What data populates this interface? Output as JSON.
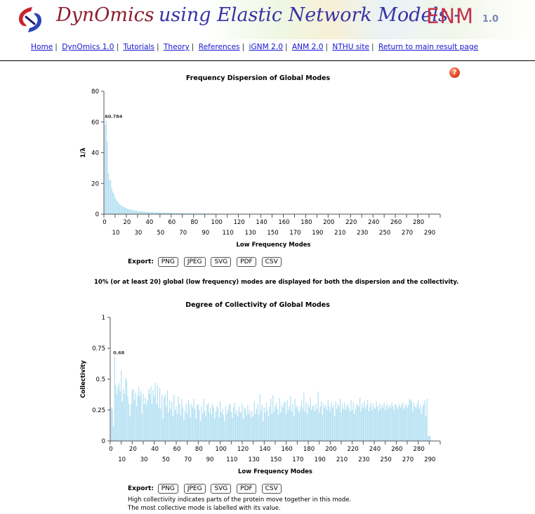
{
  "header": {
    "brand": "DynOmics",
    "subtitle": "using Elastic Network Models  -",
    "enm": "ENM",
    "version": "1.0"
  },
  "nav": [
    {
      "label": "Home"
    },
    {
      "label": "DynOmics 1.0"
    },
    {
      "label": "Tutorials"
    },
    {
      "label": "Theory"
    },
    {
      "label": "References"
    },
    {
      "label": "iGNM 2.0"
    },
    {
      "label": "ANM 2.0"
    },
    {
      "label": "NTHU site"
    },
    {
      "label": "Return to main result page"
    }
  ],
  "help": {
    "symbol": "?"
  },
  "export": {
    "label": "Export:",
    "buttons": [
      "PNG",
      "JPEG",
      "SVG",
      "PDF",
      "CSV"
    ]
  },
  "note_modes": "10% (or at least 20) global (low frequency) modes are displayed for both the dispersion and the collectivity.",
  "note_collectivity_1": "High collectivity indicates parts of the protein move together in this mode.",
  "note_collectivity_2": "The most collective mode is labelled with its value.",
  "colors": {
    "bar": "#b3e0f2",
    "axis": "#555555",
    "brand": "#8c1d2f",
    "subtitle": "#3a32a6",
    "link": "#1515d0"
  },
  "chart_data": [
    {
      "type": "bar",
      "title": "Frequency Dispersion of Global Modes",
      "xlabel": "Low Frequency Modes",
      "ylabel": "1/λ",
      "ylim": [
        0,
        80
      ],
      "yticks": [
        0,
        20,
        40,
        60,
        80
      ],
      "xlim": [
        0,
        300
      ],
      "xticks": [
        0,
        10,
        20,
        30,
        40,
        50,
        60,
        70,
        80,
        90,
        100,
        110,
        120,
        130,
        140,
        150,
        160,
        170,
        180,
        190,
        200,
        210,
        220,
        230,
        240,
        250,
        260,
        270,
        280,
        290
      ],
      "annotation": "60.784",
      "max_index": 1,
      "x": [
        1,
        2,
        3,
        4,
        5,
        6,
        7,
        8,
        9,
        10,
        11,
        12,
        13,
        14,
        15,
        16,
        17,
        18,
        19,
        20,
        21,
        22,
        23,
        24,
        25,
        26,
        27,
        28,
        29,
        30,
        31,
        32,
        33,
        34,
        35,
        36,
        37,
        38,
        39,
        40,
        41,
        42,
        43,
        44,
        45,
        46,
        47,
        48,
        49,
        50,
        51,
        52,
        53,
        54,
        55,
        56,
        57,
        58,
        59,
        60,
        61,
        62,
        63,
        64,
        65,
        66,
        67,
        68,
        69,
        70,
        71,
        72,
        73,
        74,
        75,
        76,
        77,
        78,
        79,
        80,
        81,
        82,
        83,
        84,
        85,
        86,
        87,
        88,
        89,
        90,
        91,
        92,
        93,
        94,
        95,
        96,
        97,
        98,
        99,
        100
      ],
      "values": [
        58.1,
        60.8,
        47.3,
        26.8,
        22.6,
        22.0,
        16.8,
        14.2,
        13.1,
        10.7,
        9.5,
        8.3,
        7.4,
        6.6,
        6.0,
        5.5,
        5.0,
        4.6,
        4.2,
        3.9,
        3.6,
        3.4,
        3.1,
        2.9,
        2.8,
        2.6,
        2.5,
        2.3,
        2.2,
        2.1,
        2.0,
        1.9,
        1.8,
        1.75,
        1.7,
        1.6,
        1.55,
        1.5,
        1.45,
        1.4,
        1.35,
        1.3,
        1.28,
        1.25,
        1.2,
        1.18,
        1.15,
        1.12,
        1.1,
        1.08,
        1.05,
        1.02,
        1.0,
        0.98,
        0.96,
        0.94,
        0.92,
        0.9,
        0.88,
        0.86,
        0.85,
        0.84,
        0.82,
        0.81,
        0.8,
        0.78,
        0.77,
        0.76,
        0.75,
        0.74,
        0.73,
        0.72,
        0.71,
        0.7,
        0.69,
        0.68,
        0.67,
        0.66,
        0.65,
        0.64,
        0.63,
        0.62,
        0.61,
        0.6,
        0.59,
        0.58,
        0.57,
        0.56,
        0.55,
        0.55,
        0.54,
        0.53,
        0.52,
        0.52,
        0.51,
        0.5,
        0.5,
        0.49,
        0.48,
        0.48
      ],
      "tail_value": 0.3
    },
    {
      "type": "bar",
      "title": "Degree of Collectivity of Global Modes",
      "xlabel": "Low Frequency Modes",
      "ylabel": "Collectivity",
      "ylim": [
        0,
        1
      ],
      "yticks": [
        0,
        0.25,
        0.5,
        0.75,
        1
      ],
      "ytick_labels": [
        "0",
        "0.25",
        "0.5",
        "0.75",
        "1"
      ],
      "xlim": [
        0,
        300
      ],
      "xticks": [
        0,
        10,
        20,
        30,
        40,
        50,
        60,
        70,
        80,
        90,
        100,
        110,
        120,
        130,
        140,
        150,
        160,
        170,
        180,
        190,
        200,
        210,
        220,
        230,
        240,
        250,
        260,
        270,
        280,
        290
      ],
      "annotation": "0.68",
      "max_index": 3,
      "values": [
        0.27,
        0.26,
        0.12,
        0.68,
        0.45,
        0.38,
        0.44,
        0.47,
        0.4,
        0.57,
        0.32,
        0.42,
        0.38,
        0.51,
        0.49,
        0.36,
        0.3,
        0.2,
        0.3,
        0.41,
        0.42,
        0.33,
        0.39,
        0.28,
        0.37,
        0.44,
        0.36,
        0.4,
        0.22,
        0.38,
        0.3,
        0.35,
        0.29,
        0.33,
        0.42,
        0.38,
        0.44,
        0.3,
        0.41,
        0.36,
        0.47,
        0.3,
        0.45,
        0.27,
        0.43,
        0.26,
        0.37,
        0.18,
        0.35,
        0.38,
        0.28,
        0.41,
        0.23,
        0.33,
        0.26,
        0.32,
        0.2,
        0.37,
        0.25,
        0.28,
        0.22,
        0.36,
        0.3,
        0.21,
        0.34,
        0.27,
        0.17,
        0.24,
        0.3,
        0.22,
        0.33,
        0.29,
        0.19,
        0.3,
        0.27,
        0.34,
        0.26,
        0.18,
        0.29,
        0.3,
        0.25,
        0.16,
        0.28,
        0.22,
        0.34,
        0.24,
        0.2,
        0.29,
        0.31,
        0.23,
        0.27,
        0.21,
        0.3,
        0.27,
        0.18,
        0.24,
        0.28,
        0.27,
        0.19,
        0.32,
        0.23,
        0.26,
        0.21,
        0.16,
        0.28,
        0.22,
        0.25,
        0.29,
        0.3,
        0.24,
        0.19,
        0.27,
        0.31,
        0.22,
        0.25,
        0.2,
        0.28,
        0.24,
        0.23,
        0.3,
        0.18,
        0.27,
        0.26,
        0.21,
        0.29,
        0.22,
        0.25,
        0.19,
        0.24,
        0.2,
        0.32,
        0.22,
        0.26,
        0.3,
        0.21,
        0.38,
        0.24,
        0.29,
        0.16,
        0.27,
        0.23,
        0.31,
        0.25,
        0.2,
        0.28,
        0.34,
        0.22,
        0.37,
        0.24,
        0.28,
        0.31,
        0.26,
        0.21,
        0.35,
        0.23,
        0.29,
        0.27,
        0.31,
        0.32,
        0.22,
        0.33,
        0.25,
        0.28,
        0.36,
        0.24,
        0.3,
        0.2,
        0.34,
        0.27,
        0.29,
        0.25,
        0.23,
        0.28,
        0.33,
        0.26,
        0.39,
        0.24,
        0.31,
        0.22,
        0.3,
        0.27,
        0.35,
        0.25,
        0.28,
        0.29,
        0.24,
        0.3,
        0.26,
        0.4,
        0.23,
        0.28,
        0.32,
        0.21,
        0.3,
        0.27,
        0.29,
        0.25,
        0.33,
        0.28,
        0.24,
        0.31,
        0.27,
        0.29,
        0.2,
        0.32,
        0.26,
        0.3,
        0.28,
        0.34,
        0.23,
        0.3,
        0.26,
        0.31,
        0.25,
        0.28,
        0.3,
        0.27,
        0.24,
        0.33,
        0.25,
        0.31,
        0.22,
        0.26,
        0.3,
        0.29,
        0.28,
        0.35,
        0.24,
        0.3,
        0.27,
        0.32,
        0.26,
        0.29,
        0.33,
        0.24,
        0.28,
        0.31,
        0.25,
        0.3,
        0.27,
        0.26,
        0.32,
        0.28,
        0.24,
        0.3,
        0.26,
        0.29,
        0.27,
        0.31,
        0.25,
        0.28,
        0.3,
        0.26,
        0.29,
        0.27,
        0.31,
        0.28,
        0.25,
        0.3,
        0.29,
        0.26,
        0.28,
        0.3,
        0.27,
        0.29,
        0.31,
        0.26,
        0.28,
        0.3,
        0.27,
        0.29,
        0.34,
        0.33,
        0.32,
        0.24,
        0.31,
        0.28,
        0.27,
        0.3,
        0.33,
        0.26,
        0.29,
        0.22,
        0.28,
        0.3,
        0.33,
        0.2,
        0.34,
        0.04,
        0.04,
        0.04
      ]
    }
  ]
}
